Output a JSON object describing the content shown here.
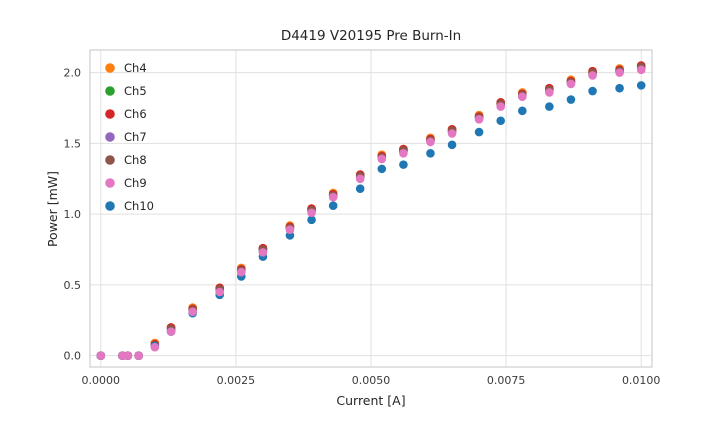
{
  "style": {
    "background": "#ffffff",
    "grid_color": "#e1e1e1",
    "border_color": "#cfcfcf",
    "text_color": "#262626"
  },
  "chart_data": {
    "type": "scatter",
    "title": "D4419 V20195 Pre Burn-In",
    "xlabel": "Current [A]",
    "ylabel": "Power [mW]",
    "xlim": [
      -0.0002,
      0.0102
    ],
    "ylim": [
      -0.08,
      2.16
    ],
    "grid": true,
    "legend_position": "upper-left",
    "xticks": {
      "values": [
        0.0,
        0.0025,
        0.005,
        0.0075,
        0.01
      ],
      "labels": [
        "0.0000",
        "0.0025",
        "0.0050",
        "0.0075",
        "0.0100"
      ]
    },
    "yticks": {
      "values": [
        0.0,
        0.5,
        1.0,
        1.5,
        2.0
      ],
      "labels": [
        "0.0",
        "0.5",
        "1.0",
        "1.5",
        "2.0"
      ]
    },
    "x": [
      0.0,
      0.0004,
      0.0005,
      0.0007,
      0.001,
      0.0013,
      0.0017,
      0.0022,
      0.0026,
      0.003,
      0.0035,
      0.0039,
      0.0043,
      0.0048,
      0.0052,
      0.0056,
      0.0061,
      0.0065,
      0.007,
      0.0074,
      0.0078,
      0.0083,
      0.0087,
      0.0091,
      0.0096,
      0.01
    ],
    "series": [
      {
        "name": "Ch4",
        "color": "#ff7f0e",
        "values": [
          0.0,
          0.0,
          0.0,
          0.0,
          0.09,
          0.2,
          0.34,
          0.48,
          0.62,
          0.76,
          0.92,
          1.04,
          1.15,
          1.28,
          1.42,
          1.46,
          1.54,
          1.6,
          1.7,
          1.79,
          1.86,
          1.89,
          1.95,
          2.01,
          2.03,
          2.05
        ]
      },
      {
        "name": "Ch5",
        "color": "#2ca02c",
        "values": [
          0.0,
          0.0,
          0.0,
          0.0,
          0.08,
          0.19,
          0.33,
          0.47,
          0.61,
          0.75,
          0.91,
          1.03,
          1.14,
          1.27,
          1.41,
          1.45,
          1.53,
          1.59,
          1.69,
          1.78,
          1.85,
          1.88,
          1.94,
          2.0,
          2.02,
          2.04
        ]
      },
      {
        "name": "Ch6",
        "color": "#d62728",
        "values": [
          0.0,
          0.0,
          0.0,
          0.0,
          0.08,
          0.2,
          0.33,
          0.48,
          0.61,
          0.76,
          0.91,
          1.04,
          1.14,
          1.28,
          1.41,
          1.46,
          1.53,
          1.6,
          1.69,
          1.79,
          1.85,
          1.89,
          1.94,
          2.01,
          2.02,
          2.05
        ]
      },
      {
        "name": "Ch7",
        "color": "#9467bd",
        "values": [
          0.0,
          0.0,
          0.0,
          0.0,
          0.07,
          0.18,
          0.32,
          0.46,
          0.6,
          0.74,
          0.9,
          1.02,
          1.13,
          1.26,
          1.4,
          1.44,
          1.52,
          1.58,
          1.68,
          1.77,
          1.84,
          1.87,
          1.93,
          1.99,
          2.01,
          2.03
        ]
      },
      {
        "name": "Ch8",
        "color": "#8c564b",
        "values": [
          0.0,
          0.0,
          0.0,
          0.0,
          0.07,
          0.19,
          0.32,
          0.47,
          0.6,
          0.75,
          0.9,
          1.03,
          1.13,
          1.27,
          1.4,
          1.45,
          1.52,
          1.59,
          1.68,
          1.78,
          1.84,
          1.88,
          1.93,
          2.0,
          2.01,
          2.04
        ]
      },
      {
        "name": "Ch10",
        "color": "#1f77b4",
        "values": [
          0.0,
          0.0,
          0.0,
          0.0,
          0.07,
          0.17,
          0.3,
          0.43,
          0.56,
          0.7,
          0.85,
          0.96,
          1.06,
          1.18,
          1.32,
          1.35,
          1.43,
          1.49,
          1.58,
          1.66,
          1.73,
          1.76,
          1.81,
          1.87,
          1.89,
          1.91
        ]
      },
      {
        "name": "Ch9",
        "color": "#e377c2",
        "values": [
          0.0,
          0.0,
          0.0,
          0.0,
          0.06,
          0.17,
          0.31,
          0.45,
          0.59,
          0.73,
          0.89,
          1.01,
          1.12,
          1.25,
          1.39,
          1.43,
          1.51,
          1.57,
          1.67,
          1.76,
          1.83,
          1.86,
          1.92,
          1.98,
          2.0,
          2.02
        ]
      }
    ],
    "legend_order": [
      "Ch4",
      "Ch5",
      "Ch6",
      "Ch7",
      "Ch8",
      "Ch9",
      "Ch10"
    ]
  }
}
